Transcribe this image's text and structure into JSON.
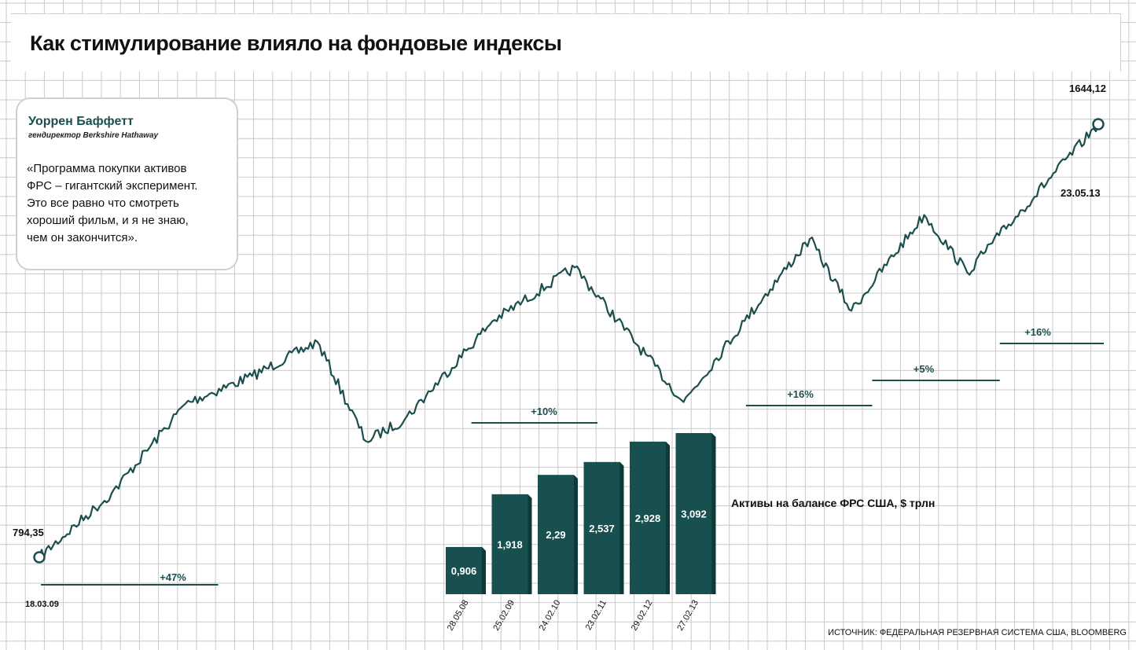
{
  "header": {
    "title": "Как стимулирование влияло на фондовые индексы"
  },
  "quote": {
    "author": "Уоррен Баффетт",
    "role": "гендиректор Berkshire Hathaway",
    "lines": [
      "«Программа покупки активов",
      "ФРС – гигантский эксперимент.",
      "Это все равно что смотреть",
      "хороший фильм, и я не знаю,",
      "чем он закончится»."
    ]
  },
  "colors": {
    "series": "#1b4f4e",
    "bar_front": "#17504f",
    "bar_side": "#0f3938",
    "grid": "#c9c9c9"
  },
  "chart_data": [
    {
      "type": "line",
      "series": [
        {
          "values": [
            {
              "date": "18.03.09",
              "value": 794.35
            },
            {
              "date": "30.06.09",
              "value": 919
            },
            {
              "date": "15.10.09",
              "value": 1096
            },
            {
              "date": "19.01.10",
              "value": 1150
            },
            {
              "date": "23.04.10",
              "value": 1217
            },
            {
              "date": "02.07.10",
              "value": 1022
            },
            {
              "date": "27.08.10",
              "value": 1065
            },
            {
              "date": "31.12.10",
              "value": 1257
            },
            {
              "date": "29.04.11",
              "value": 1363
            },
            {
              "date": "03.10.11",
              "value": 1099
            },
            {
              "date": "30.12.11",
              "value": 1258
            },
            {
              "date": "02.04.12",
              "value": 1419
            },
            {
              "date": "01.06.12",
              "value": 1278
            },
            {
              "date": "14.09.12",
              "value": 1466
            },
            {
              "date": "15.11.12",
              "value": 1353
            },
            {
              "date": "31.12.12",
              "value": 1426
            },
            {
              "date": "23.05.13",
              "value": 1644.12
            }
          ]
        }
      ],
      "start": {
        "date": "18.03.09",
        "value_label": "794,35"
      },
      "end": {
        "date": "23.05.13",
        "value_label": "1644,12"
      },
      "period_changes": [
        {
          "label": "+47%",
          "from": "2009-03",
          "to": "2009-12"
        },
        {
          "label": "+10%",
          "from": "2010-12",
          "to": "2011-06"
        },
        {
          "label": "+16%",
          "from": "2012-01",
          "to": "2012-07"
        },
        {
          "label": "+5%",
          "from": "2012-07",
          "to": "2013-01"
        },
        {
          "label": "+16%",
          "from": "2013-01",
          "to": "2013-06"
        }
      ]
    },
    {
      "type": "bar",
      "title": "Активы на балансе ФРС США, $ трлн",
      "categories": [
        "28.05.08",
        "25.02.09",
        "24.02.10",
        "23.02.11",
        "29.02.12",
        "27.02.13"
      ],
      "values": [
        0.906,
        1.918,
        2.29,
        2.537,
        2.928,
        3.092
      ],
      "value_labels": [
        "0,906",
        "1,918",
        "2,29",
        "2,537",
        "2,928",
        "3,092"
      ]
    }
  ],
  "source": "ИСТОЧНИК: ФЕДЕРАЛЬНАЯ РЕЗЕРВНАЯ СИСТЕМА США, BLOOMBERG"
}
